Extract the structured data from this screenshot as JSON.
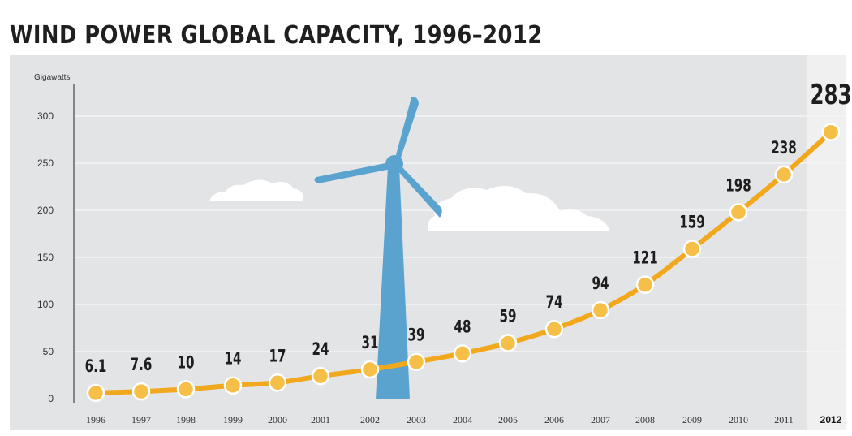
{
  "title": "WIND POWER GLOBAL CAPACITY, 1996–2012",
  "colors": {
    "background": "#e3e4e6",
    "highlight_column": "#f0f0f0",
    "gridline": "#f4f4f5",
    "line": "#f2a81d",
    "marker_fill": "#f6bf47",
    "turbine": "#5ba3cf",
    "cloud": "#ffffff"
  },
  "chart_data": {
    "type": "line",
    "title": "WIND POWER GLOBAL CAPACITY, 1996–2012",
    "xlabel": "",
    "ylabel": "Gigawatts",
    "categories": [
      "1996",
      "1997",
      "1998",
      "1999",
      "2000",
      "2001",
      "2002",
      "2003",
      "2004",
      "2005",
      "2006",
      "2007",
      "2008",
      "2009",
      "2010",
      "2011",
      "2012"
    ],
    "values": [
      6.1,
      7.6,
      10,
      14,
      17,
      24,
      31,
      39,
      48,
      59,
      74,
      94,
      121,
      159,
      198,
      238,
      283
    ],
    "data_labels": [
      "6.1",
      "7.6",
      "10",
      "14",
      "17",
      "24",
      "31",
      "39",
      "48",
      "59",
      "74",
      "94",
      "121",
      "159",
      "198",
      "238",
      "283"
    ],
    "ylim": [
      0,
      320
    ],
    "yticks": [
      0,
      50,
      100,
      150,
      200,
      250,
      300
    ],
    "grid": true,
    "legend": "none",
    "highlight_category": "2012",
    "decoration": [
      "wind-turbine-illustration",
      "cloud-illustration"
    ]
  }
}
